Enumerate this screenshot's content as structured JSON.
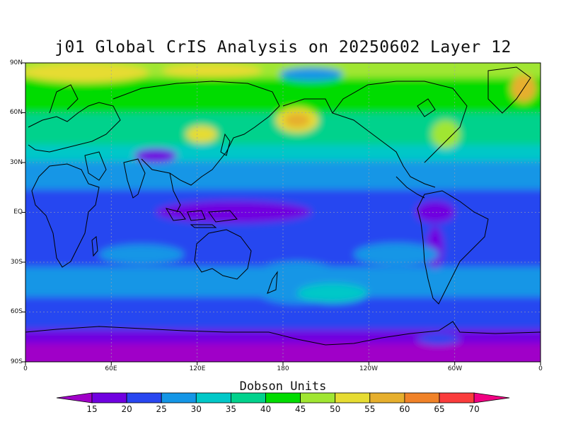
{
  "title": "j01 Global CrIS Analysis on 20250602 Layer 12",
  "legend": {
    "title": "Dobson Units",
    "levels": [
      "15",
      "20",
      "25",
      "30",
      "35",
      "40",
      "45",
      "50",
      "55",
      "60",
      "65",
      "70"
    ],
    "colors": [
      "#a000c8",
      "#7000e0",
      "#2846f0",
      "#1496e6",
      "#00c8c8",
      "#00d28c",
      "#00dc00",
      "#a0e632",
      "#e6dc32",
      "#e6af2d",
      "#f08228",
      "#fa3c3c",
      "#f00082"
    ]
  },
  "y_axis": {
    "ticks": [
      "90N",
      "60N",
      "30N",
      "EQ",
      "30S",
      "60S",
      "90S"
    ]
  },
  "x_axis": {
    "ticks": [
      "0",
      "60E",
      "120E",
      "180",
      "120W",
      "60W",
      "0"
    ]
  },
  "map_type": "global equirectangular contour map with coastlines and dashed graticule"
}
